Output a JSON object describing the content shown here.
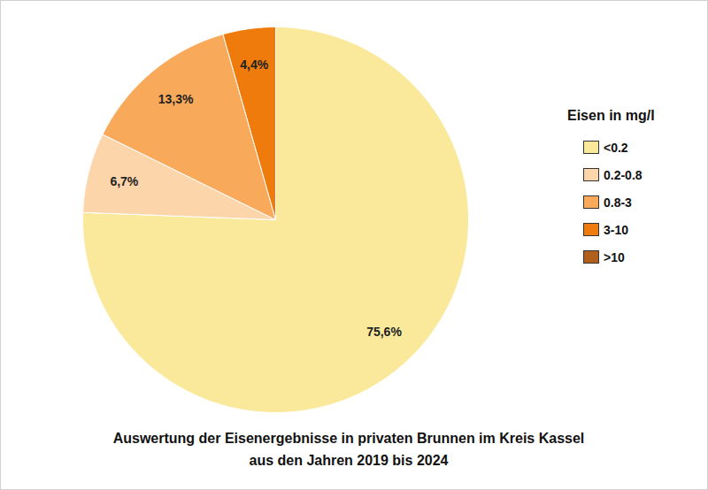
{
  "chart_data": {
    "type": "pie",
    "title": "Auswertung der Eisenergebnisse in privaten Brunnen im Kreis Kassel\naus den Jahren 2019 bis 2024",
    "legend_title": "Eisen in mg/l",
    "categories": [
      "<0.2",
      "0.2-0.8",
      "0.8-3",
      "3-10",
      ">10"
    ],
    "values": [
      75.6,
      6.7,
      13.3,
      4.4,
      0
    ],
    "value_labels": [
      "75,6%",
      "6,7%",
      "13,3%",
      "4,4%",
      null
    ],
    "colors": [
      "#fae99b",
      "#fdd5aa",
      "#f9a95a",
      "#ee7b0b",
      "#b0601a"
    ],
    "legend": "right",
    "data_labels": true
  }
}
